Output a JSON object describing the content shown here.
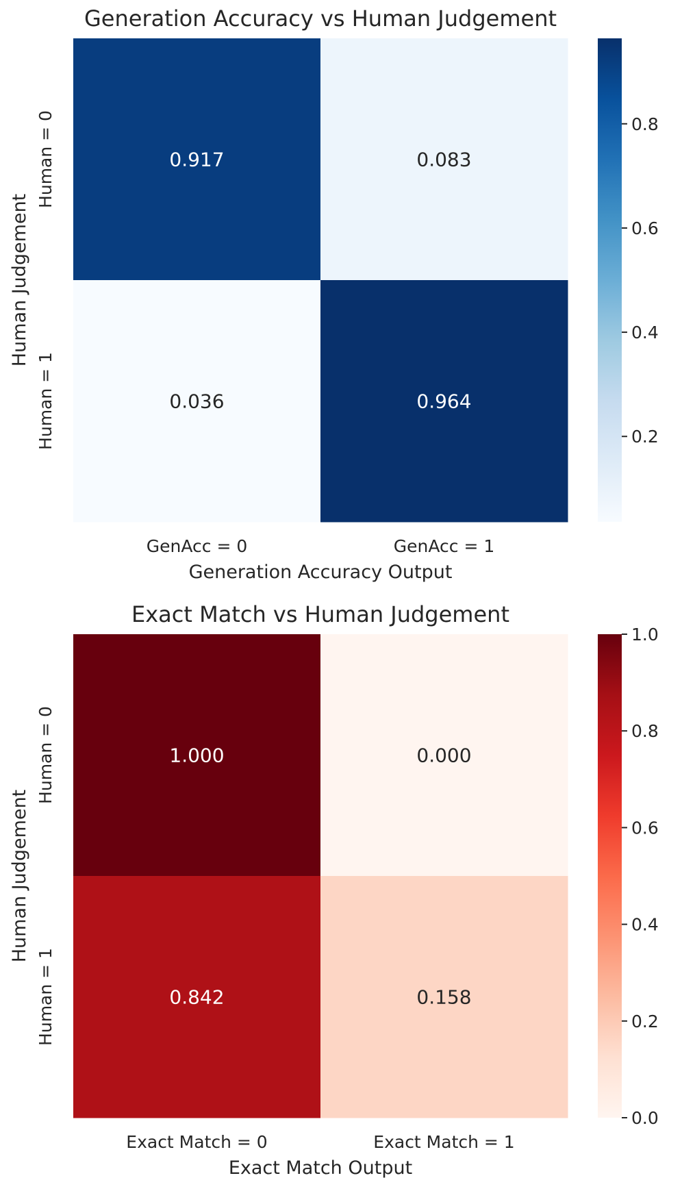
{
  "chart_data": [
    {
      "type": "heatmap",
      "title": "Generation Accuracy vs Human Judgement",
      "xlabel": "Generation Accuracy Output",
      "ylabel": "Human Judgement",
      "x_categories": [
        "GenAcc = 0",
        "GenAcc = 1"
      ],
      "y_categories": [
        "Human = 0",
        "Human = 1"
      ],
      "values": [
        [
          0.917,
          0.083
        ],
        [
          0.036,
          0.964
        ]
      ],
      "cell_labels": [
        [
          "0.917",
          "0.083"
        ],
        [
          "0.036",
          "0.964"
        ]
      ],
      "colormap": "Blues",
      "colorbar": {
        "min": 0.036,
        "max": 0.964,
        "ticks": [
          0.2,
          0.4,
          0.6,
          0.8
        ],
        "tick_labels": [
          "0.2",
          "0.4",
          "0.6",
          "0.8"
        ]
      }
    },
    {
      "type": "heatmap",
      "title": "Exact Match vs Human Judgement",
      "xlabel": "Exact Match Output",
      "ylabel": "Human Judgement",
      "x_categories": [
        "Exact Match = 0",
        "Exact Match = 1"
      ],
      "y_categories": [
        "Human = 0",
        "Human = 1"
      ],
      "values": [
        [
          1.0,
          0.0
        ],
        [
          0.842,
          0.158
        ]
      ],
      "cell_labels": [
        [
          "1.000",
          "0.000"
        ],
        [
          "0.842",
          "0.158"
        ]
      ],
      "colormap": "Reds",
      "colorbar": {
        "min": 0.0,
        "max": 1.0,
        "ticks": [
          0.0,
          0.2,
          0.4,
          0.6,
          0.8,
          1.0
        ],
        "tick_labels": [
          "0.0",
          "0.2",
          "0.4",
          "0.6",
          "0.8",
          "1.0"
        ]
      }
    }
  ]
}
